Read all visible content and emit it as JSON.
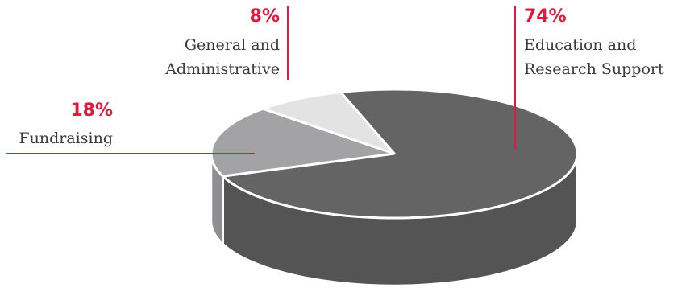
{
  "chart_data": {
    "type": "pie",
    "style": "3d",
    "categories": [
      "Education and Research Support",
      "Fundraising",
      "General and Administrative"
    ],
    "values": [
      74,
      18,
      8
    ],
    "value_labels": [
      "74%",
      "18%",
      "8%"
    ],
    "label_lines": [
      [
        "Education and",
        "Research Support"
      ],
      [
        "Fundraising"
      ],
      [
        "General and",
        "Administrative"
      ]
    ],
    "colors": [
      "#646464",
      "#a3a3a5",
      "#e3e3e4"
    ],
    "accent_color": "#e0193f"
  }
}
